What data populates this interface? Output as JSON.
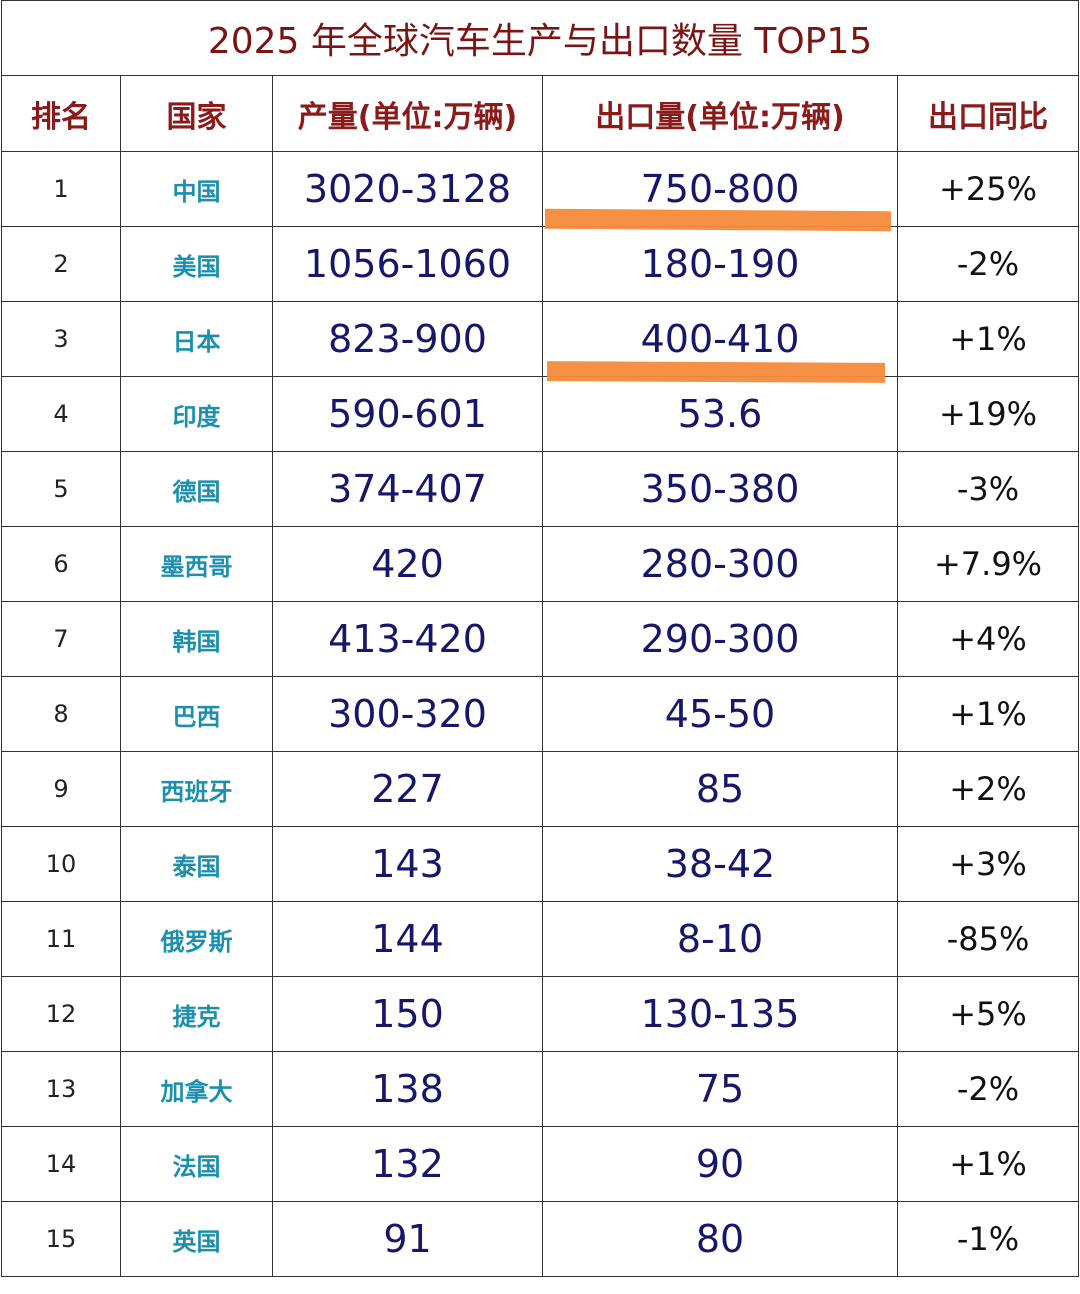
{
  "title": "2025 年全球汽车生产与出口数量 TOP15",
  "table": {
    "header": [
      "排名",
      "国家",
      "产量(单位:万辆)",
      "出口量(单位:万辆)",
      "出口同比"
    ],
    "rows": [
      [
        "1",
        "中国",
        "3020-3128",
        "750-800",
        "+25%"
      ],
      [
        "2",
        "美国",
        "1056-1060",
        "180-190",
        "-2%"
      ],
      [
        "3",
        "日本",
        "823-900",
        "400-410",
        "+1%"
      ],
      [
        "4",
        "印度",
        "590-601",
        "53.6",
        "+19%"
      ],
      [
        "5",
        "德国",
        "374-407",
        "350-380",
        "-3%"
      ],
      [
        "6",
        "墨西哥",
        "420",
        "280-300",
        "+7.9%"
      ],
      [
        "7",
        "韩国",
        "413-420",
        "290-300",
        "+4%"
      ],
      [
        "8",
        "巴西",
        "300-320",
        "45-50",
        "+1%"
      ],
      [
        "9",
        "西班牙",
        "227",
        "85",
        "+2%"
      ],
      [
        "10",
        "泰国",
        "143",
        "38-42",
        "+3%"
      ],
      [
        "11",
        "俄罗斯",
        "144",
        "8-10",
        "-85%"
      ],
      [
        "12",
        "捷克",
        "150",
        "130-135",
        "+5%"
      ],
      [
        "13",
        "加拿大",
        "138",
        "75",
        "-2%"
      ],
      [
        "14",
        "法国",
        "132",
        "90",
        "+1%"
      ],
      [
        "15",
        "英国",
        "91",
        "80",
        "-1%"
      ]
    ]
  }
}
